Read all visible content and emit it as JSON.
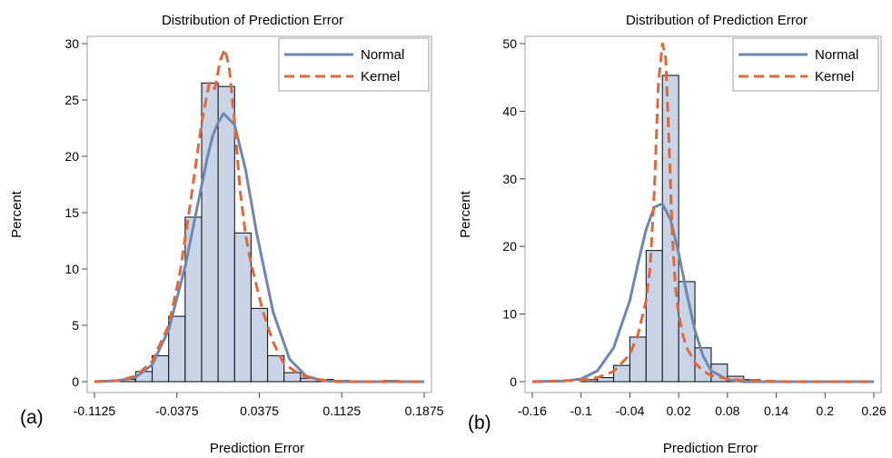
{
  "figure": {
    "panel_labels": [
      "(a)",
      "(b)"
    ]
  },
  "chart_data": [
    {
      "type": "bar",
      "title": "Distribution of Prediction Error",
      "xlabel": "Prediction Error",
      "ylabel": "Percent",
      "xlim": [
        -0.1125,
        0.1875
      ],
      "ylim": [
        0,
        30
      ],
      "x_ticks": [
        -0.1125,
        -0.0375,
        0.0375,
        0.1125,
        0.1875
      ],
      "x_tick_labels": [
        "-0.1125",
        "-0.0375",
        "0.0375",
        "0.1125",
        "0.1875"
      ],
      "y_ticks": [
        0,
        5,
        10,
        15,
        20,
        25,
        30
      ],
      "y_tick_labels": [
        "0",
        "5",
        "10",
        "15",
        "20",
        "25",
        "30"
      ],
      "legend": [
        "Normal",
        "Kernel"
      ],
      "legend_position": "top-right",
      "bar_color": "#c9d5e6",
      "normal_color": "#6f86ad",
      "kernel_color": "#dd6a3e",
      "histogram": {
        "bin_width": 0.015,
        "bin_centers": [
          -0.0825,
          -0.0675,
          -0.0525,
          -0.0375,
          -0.0225,
          -0.0075,
          0.0075,
          0.0225,
          0.0375,
          0.0525,
          0.0675,
          0.0825,
          0.0975,
          0.1125,
          0.1275,
          0.1425,
          0.1575
        ],
        "values": [
          0.2,
          0.9,
          2.3,
          5.8,
          14.6,
          26.5,
          26.2,
          13.2,
          6.5,
          2.3,
          0.8,
          0.3,
          0.2,
          0.1,
          0.05,
          0.05,
          0.1
        ]
      },
      "series": [
        {
          "name": "Normal",
          "x": [
            -0.1125,
            -0.09,
            -0.075,
            -0.06,
            -0.045,
            -0.03,
            -0.02,
            -0.01,
            -0.005,
            0.0,
            0.005,
            0.015,
            0.025,
            0.035,
            0.05,
            0.065,
            0.08,
            0.095,
            0.11,
            0.13,
            0.16,
            0.1875
          ],
          "y": [
            0.0,
            0.1,
            0.4,
            1.5,
            4.6,
            10.2,
            15.0,
            19.8,
            21.8,
            23.0,
            23.8,
            22.8,
            18.8,
            13.2,
            6.2,
            2.0,
            0.5,
            0.1,
            0.0,
            0.0,
            0.0,
            0.0
          ]
        },
        {
          "name": "Kernel",
          "x": [
            -0.1125,
            -0.09,
            -0.075,
            -0.06,
            -0.045,
            -0.035,
            -0.025,
            -0.015,
            -0.008,
            -0.003,
            0.002,
            0.006,
            0.01,
            0.015,
            0.02,
            0.025,
            0.03,
            0.04,
            0.05,
            0.06,
            0.075,
            0.09,
            0.11,
            0.13,
            0.16,
            0.1875
          ],
          "y": [
            0.0,
            0.1,
            0.5,
            1.8,
            5.0,
            9.5,
            16.0,
            23.0,
            26.5,
            26.0,
            28.5,
            29.5,
            28.0,
            23.0,
            17.0,
            13.0,
            10.5,
            6.5,
            3.5,
            1.6,
            0.6,
            0.2,
            0.0,
            0.0,
            0.0,
            0.0
          ]
        }
      ]
    },
    {
      "type": "bar",
      "title": "Distribution of Prediction Error",
      "xlabel": "Prediction Error",
      "ylabel": "Percent",
      "xlim": [
        -0.16,
        0.26
      ],
      "ylim": [
        0,
        50
      ],
      "x_ticks": [
        -0.16,
        -0.1,
        -0.04,
        0.02,
        0.08,
        0.14,
        0.2,
        0.26
      ],
      "x_tick_labels": [
        "-0.16",
        "-0.1",
        "-0.04",
        "0.02",
        "0.08",
        "0.14",
        "0.2",
        "0.26"
      ],
      "y_ticks": [
        0,
        10,
        20,
        30,
        40,
        50
      ],
      "y_tick_labels": [
        "0",
        "10",
        "20",
        "30",
        "40",
        "50"
      ],
      "legend": [
        "Normal",
        "Kernel"
      ],
      "legend_position": "top-right",
      "bar_color": "#c9d5e6",
      "normal_color": "#6f86ad",
      "kernel_color": "#dd6a3e",
      "histogram": {
        "bin_width": 0.02,
        "bin_centers": [
          -0.09,
          -0.07,
          -0.05,
          -0.03,
          -0.01,
          0.01,
          0.03,
          0.05,
          0.07,
          0.09,
          0.11,
          0.13
        ],
        "values": [
          0.3,
          0.6,
          2.4,
          6.6,
          19.4,
          45.3,
          14.8,
          5.0,
          2.6,
          0.8,
          0.3,
          0.1
        ]
      },
      "series": [
        {
          "name": "Normal",
          "x": [
            -0.16,
            -0.12,
            -0.1,
            -0.08,
            -0.06,
            -0.04,
            -0.03,
            -0.02,
            -0.01,
            0.0,
            0.01,
            0.02,
            0.03,
            0.04,
            0.05,
            0.06,
            0.08,
            0.1,
            0.12,
            0.16,
            0.2,
            0.26
          ],
          "y": [
            0.0,
            0.1,
            0.4,
            1.6,
            5.0,
            12.0,
            17.5,
            22.5,
            25.8,
            26.3,
            24.0,
            19.0,
            13.0,
            7.6,
            3.8,
            1.6,
            0.3,
            0.0,
            0.0,
            0.0,
            0.0,
            0.0
          ],
          "x_shift_note": ""
        },
        {
          "name": "Kernel",
          "x": [
            -0.16,
            -0.1,
            -0.08,
            -0.06,
            -0.04,
            -0.03,
            -0.02,
            -0.015,
            -0.01,
            -0.005,
            0.0,
            0.004,
            0.008,
            0.012,
            0.016,
            0.02,
            0.025,
            0.03,
            0.04,
            0.05,
            0.06,
            0.08,
            0.1,
            0.12,
            0.16,
            0.2,
            0.26
          ],
          "y": [
            0.0,
            0.2,
            0.6,
            1.5,
            4.0,
            7.0,
            12.0,
            17.0,
            28.0,
            44.0,
            50.0,
            48.0,
            36.0,
            22.0,
            14.0,
            10.0,
            7.0,
            5.0,
            2.8,
            1.6,
            0.9,
            0.4,
            0.2,
            0.1,
            0.0,
            0.0,
            0.0
          ]
        }
      ]
    }
  ]
}
